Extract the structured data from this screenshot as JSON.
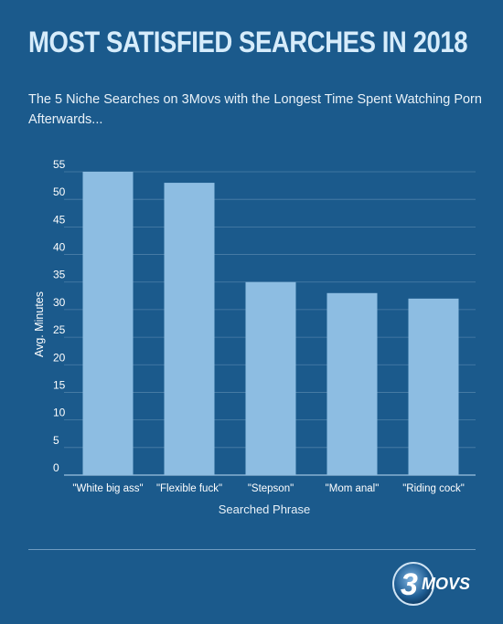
{
  "header": {
    "title": "MOST SATISFIED SEARCHES IN 2018",
    "subtitle": "The 5 Niche Searches on 3Movs with the Longest Time Spent Watching Porn Afterwards..."
  },
  "colors": {
    "background": "#1b5a8c",
    "bar": "#8dbde2",
    "grid": "#4d7fa8",
    "text": "#ffffff",
    "title": "#d6ecfb"
  },
  "chart_data": {
    "type": "bar",
    "categories": [
      "\"White big ass\"",
      "\"Flexible fuck\"",
      "\"Stepson\"",
      "\"Mom anal\"",
      "\"Riding cock\""
    ],
    "values": [
      55,
      53,
      35,
      33,
      32
    ],
    "title": "",
    "xlabel": "Searched Phrase",
    "ylabel": "Avg. Minutes",
    "ylim": [
      0,
      55
    ],
    "yticks": [
      0,
      5,
      10,
      15,
      20,
      25,
      30,
      35,
      40,
      45,
      50,
      55
    ],
    "grid": true,
    "legend": "none"
  },
  "footer": {
    "logo_text": "3MOVS",
    "logo_icon": "3movs-logo-icon"
  }
}
